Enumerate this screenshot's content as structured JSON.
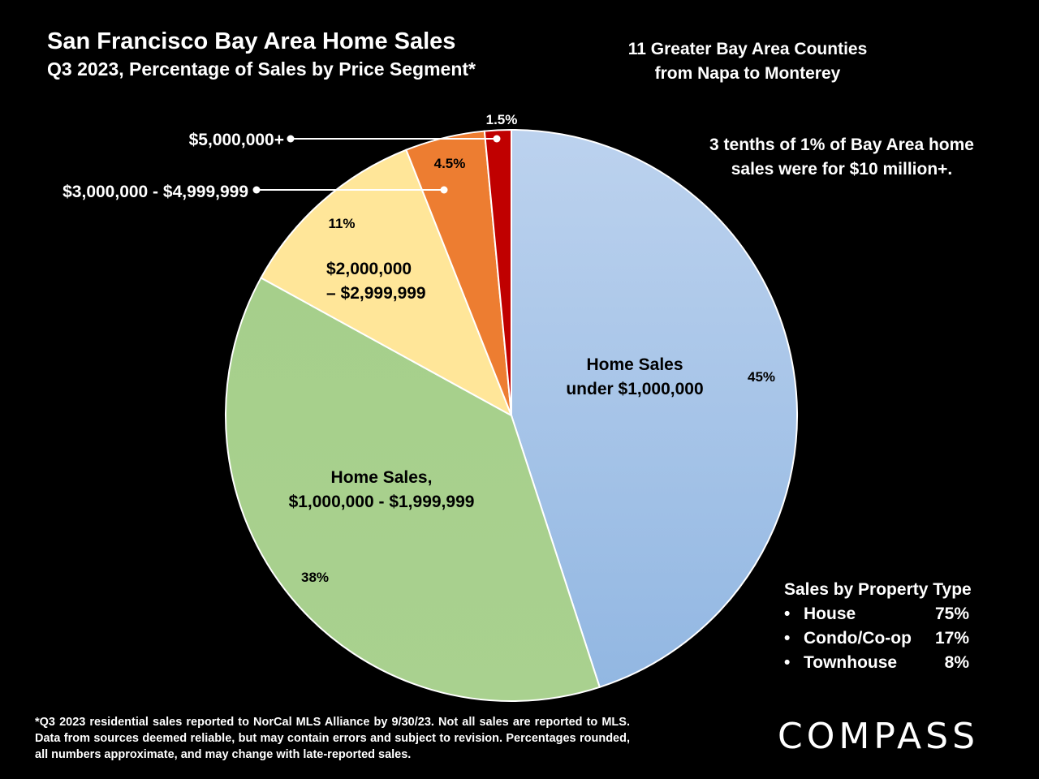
{
  "header": {
    "title": "San Francisco Bay Area Home Sales",
    "subtitle": "Q3 2023, Percentage of Sales by Price Segment*"
  },
  "region_note": [
    "11 Greater Bay Area Counties",
    "from Napa to Monterey"
  ],
  "highlight_note": [
    "3 tenths of 1% of Bay Area home",
    "sales were for $10 million+."
  ],
  "chart_data": {
    "type": "pie",
    "title": "San Francisco Bay Area Home Sales",
    "subtitle": "Q3 2023, Percentage of Sales by Price Segment*",
    "slices": [
      {
        "key": "under-1m",
        "label_lines": [
          "Home Sales",
          "under $1,000,000"
        ],
        "value": 45,
        "pct_label": "45%",
        "color": "#a7c3e6"
      },
      {
        "key": "1m-2m",
        "label_lines": [
          "Home Sales,",
          "$1,000,000 - $1,999,999"
        ],
        "value": 38,
        "pct_label": "38%",
        "color": "#a8d08d"
      },
      {
        "key": "2m-3m",
        "label_lines": [
          "$2,000,000",
          "– $2,999,999"
        ],
        "value": 11,
        "pct_label": "11%",
        "color": "#ffe699"
      },
      {
        "key": "3m-5m",
        "label_lines": [
          "$3,000,000 - $4,999,999"
        ],
        "value": 4.5,
        "pct_label": "4.5%",
        "color": "#ed7d31"
      },
      {
        "key": "5m-plus",
        "label_lines": [
          "$5,000,000+"
        ],
        "value": 1.5,
        "pct_label": "1.5%",
        "color": "#c00000"
      }
    ]
  },
  "property_type": {
    "title": "Sales by Property Type",
    "items": [
      {
        "bullet": "•",
        "name": "House",
        "pct": "75%"
      },
      {
        "bullet": "•",
        "name": "Condo/Co-op",
        "pct": "17%"
      },
      {
        "bullet": "•",
        "name": "Townhouse",
        "pct": "8%"
      }
    ]
  },
  "footnote": "*Q3 2023 residential sales reported to NorCal MLS Alliance by 9/30/23. Not all sales are reported to MLS. Data from sources deemed reliable, but may contain errors and subject to revision. Percentages rounded, all numbers approximate, and may change with late-reported sales.",
  "logo": "COMPASS"
}
